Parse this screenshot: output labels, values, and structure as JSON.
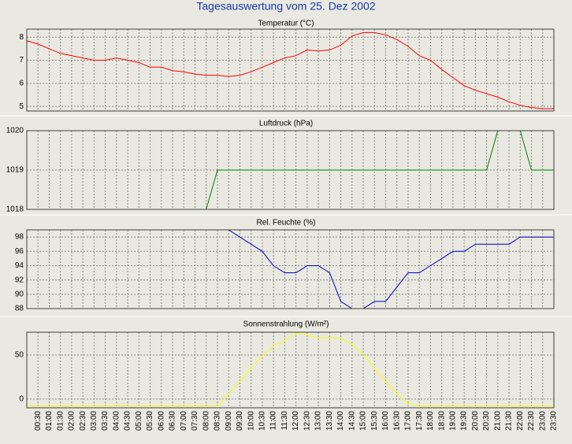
{
  "title": "Tagesauswertung vom 25. Dez 2002",
  "chart_data": [
    {
      "type": "line",
      "title": "Temperatur (°C)",
      "color": "#ff0000",
      "ylim": [
        4.8,
        8.35
      ],
      "yticks": [
        5,
        6,
        7,
        8
      ],
      "grid": true,
      "values": [
        7.85,
        7.7,
        7.5,
        7.3,
        7.2,
        7.1,
        7.0,
        7.0,
        7.1,
        7.0,
        6.9,
        6.7,
        6.7,
        6.55,
        6.5,
        6.4,
        6.35,
        6.35,
        6.3,
        6.35,
        6.5,
        6.7,
        6.9,
        7.1,
        7.2,
        7.45,
        7.4,
        7.45,
        7.65,
        8.05,
        8.2,
        8.2,
        8.1,
        7.9,
        7.6,
        7.2,
        7.0,
        6.6,
        6.25,
        5.9,
        5.7,
        5.55,
        5.4,
        5.2,
        5.05,
        4.95,
        4.9,
        4.9
      ]
    },
    {
      "type": "line",
      "title": "Luftdruck (hPa)",
      "color": "#008000",
      "ylim": [
        1018,
        1020
      ],
      "yticks": [
        1018,
        1019,
        1020
      ],
      "grid": true,
      "values": [
        1018,
        1018,
        1018,
        1018,
        1018,
        1018,
        1018,
        1018,
        1018,
        1018,
        1018,
        1018,
        1018,
        1018,
        1018,
        1018,
        1018,
        1019,
        1019,
        1019,
        1019,
        1019,
        1019,
        1019,
        1019,
        1019,
        1019,
        1019,
        1019,
        1019,
        1019,
        1019,
        1019,
        1019,
        1019,
        1019,
        1019,
        1019,
        1019,
        1019,
        1019,
        1019,
        1020,
        1020,
        1020,
        1019,
        1019,
        1019
      ]
    },
    {
      "type": "line",
      "title": "Rel. Feuchte (%)",
      "color": "#0000c0",
      "ylim": [
        88,
        99
      ],
      "yticks": [
        88,
        90,
        92,
        94,
        96,
        98
      ],
      "grid": true,
      "values": [
        null,
        null,
        null,
        null,
        null,
        null,
        null,
        null,
        null,
        null,
        null,
        null,
        null,
        null,
        null,
        null,
        null,
        null,
        99,
        98,
        97,
        96,
        94,
        93,
        93,
        94,
        94,
        93,
        89,
        88,
        88,
        89,
        89,
        91,
        93,
        93,
        94,
        95,
        96,
        96,
        97,
        97,
        97,
        97,
        98,
        98,
        98,
        98
      ]
    },
    {
      "type": "line",
      "title": "Sonnenstrahlung (W/m²)",
      "color": "#ffff00",
      "ylim": [
        -10,
        76
      ],
      "yticks": [
        0,
        50
      ],
      "grid": true,
      "categories": [
        null,
        "00:30",
        "01:00",
        "01:30",
        "02:00",
        "02:30",
        "03:00",
        "03:30",
        "04:00",
        "04:30",
        "05:00",
        "05:30",
        "06:00",
        "06:30",
        "07:00",
        "07:30",
        "08:00",
        "08:30",
        "09:00",
        "09:30",
        "10:00",
        "10:30",
        "11:00",
        "11:30",
        "12:00",
        "12:30",
        "13:00",
        "13:30",
        "14:00",
        "14:30",
        "15:00",
        "15:30",
        "16:00",
        "16:30",
        "17:00",
        "17:30",
        "18:00",
        "18:30",
        "19:00",
        "19:30",
        "20:00",
        "20:30",
        "21:00",
        "21:30",
        "22:00",
        "22:30",
        "23:00",
        "23:30"
      ],
      "values": [
        -8,
        -8,
        -8,
        -8,
        -8,
        -8,
        -8,
        -8,
        -7,
        -8,
        -8,
        -8,
        -8,
        -8,
        -8,
        -8,
        -8,
        -8,
        6,
        20,
        36,
        49,
        60,
        67,
        75,
        73,
        69,
        70,
        69,
        62,
        51,
        35,
        20,
        6,
        -5,
        -8,
        -8,
        -8,
        -8,
        -8,
        -8,
        -8,
        -8,
        -8,
        -8,
        -8,
        -8,
        -8
      ]
    }
  ]
}
